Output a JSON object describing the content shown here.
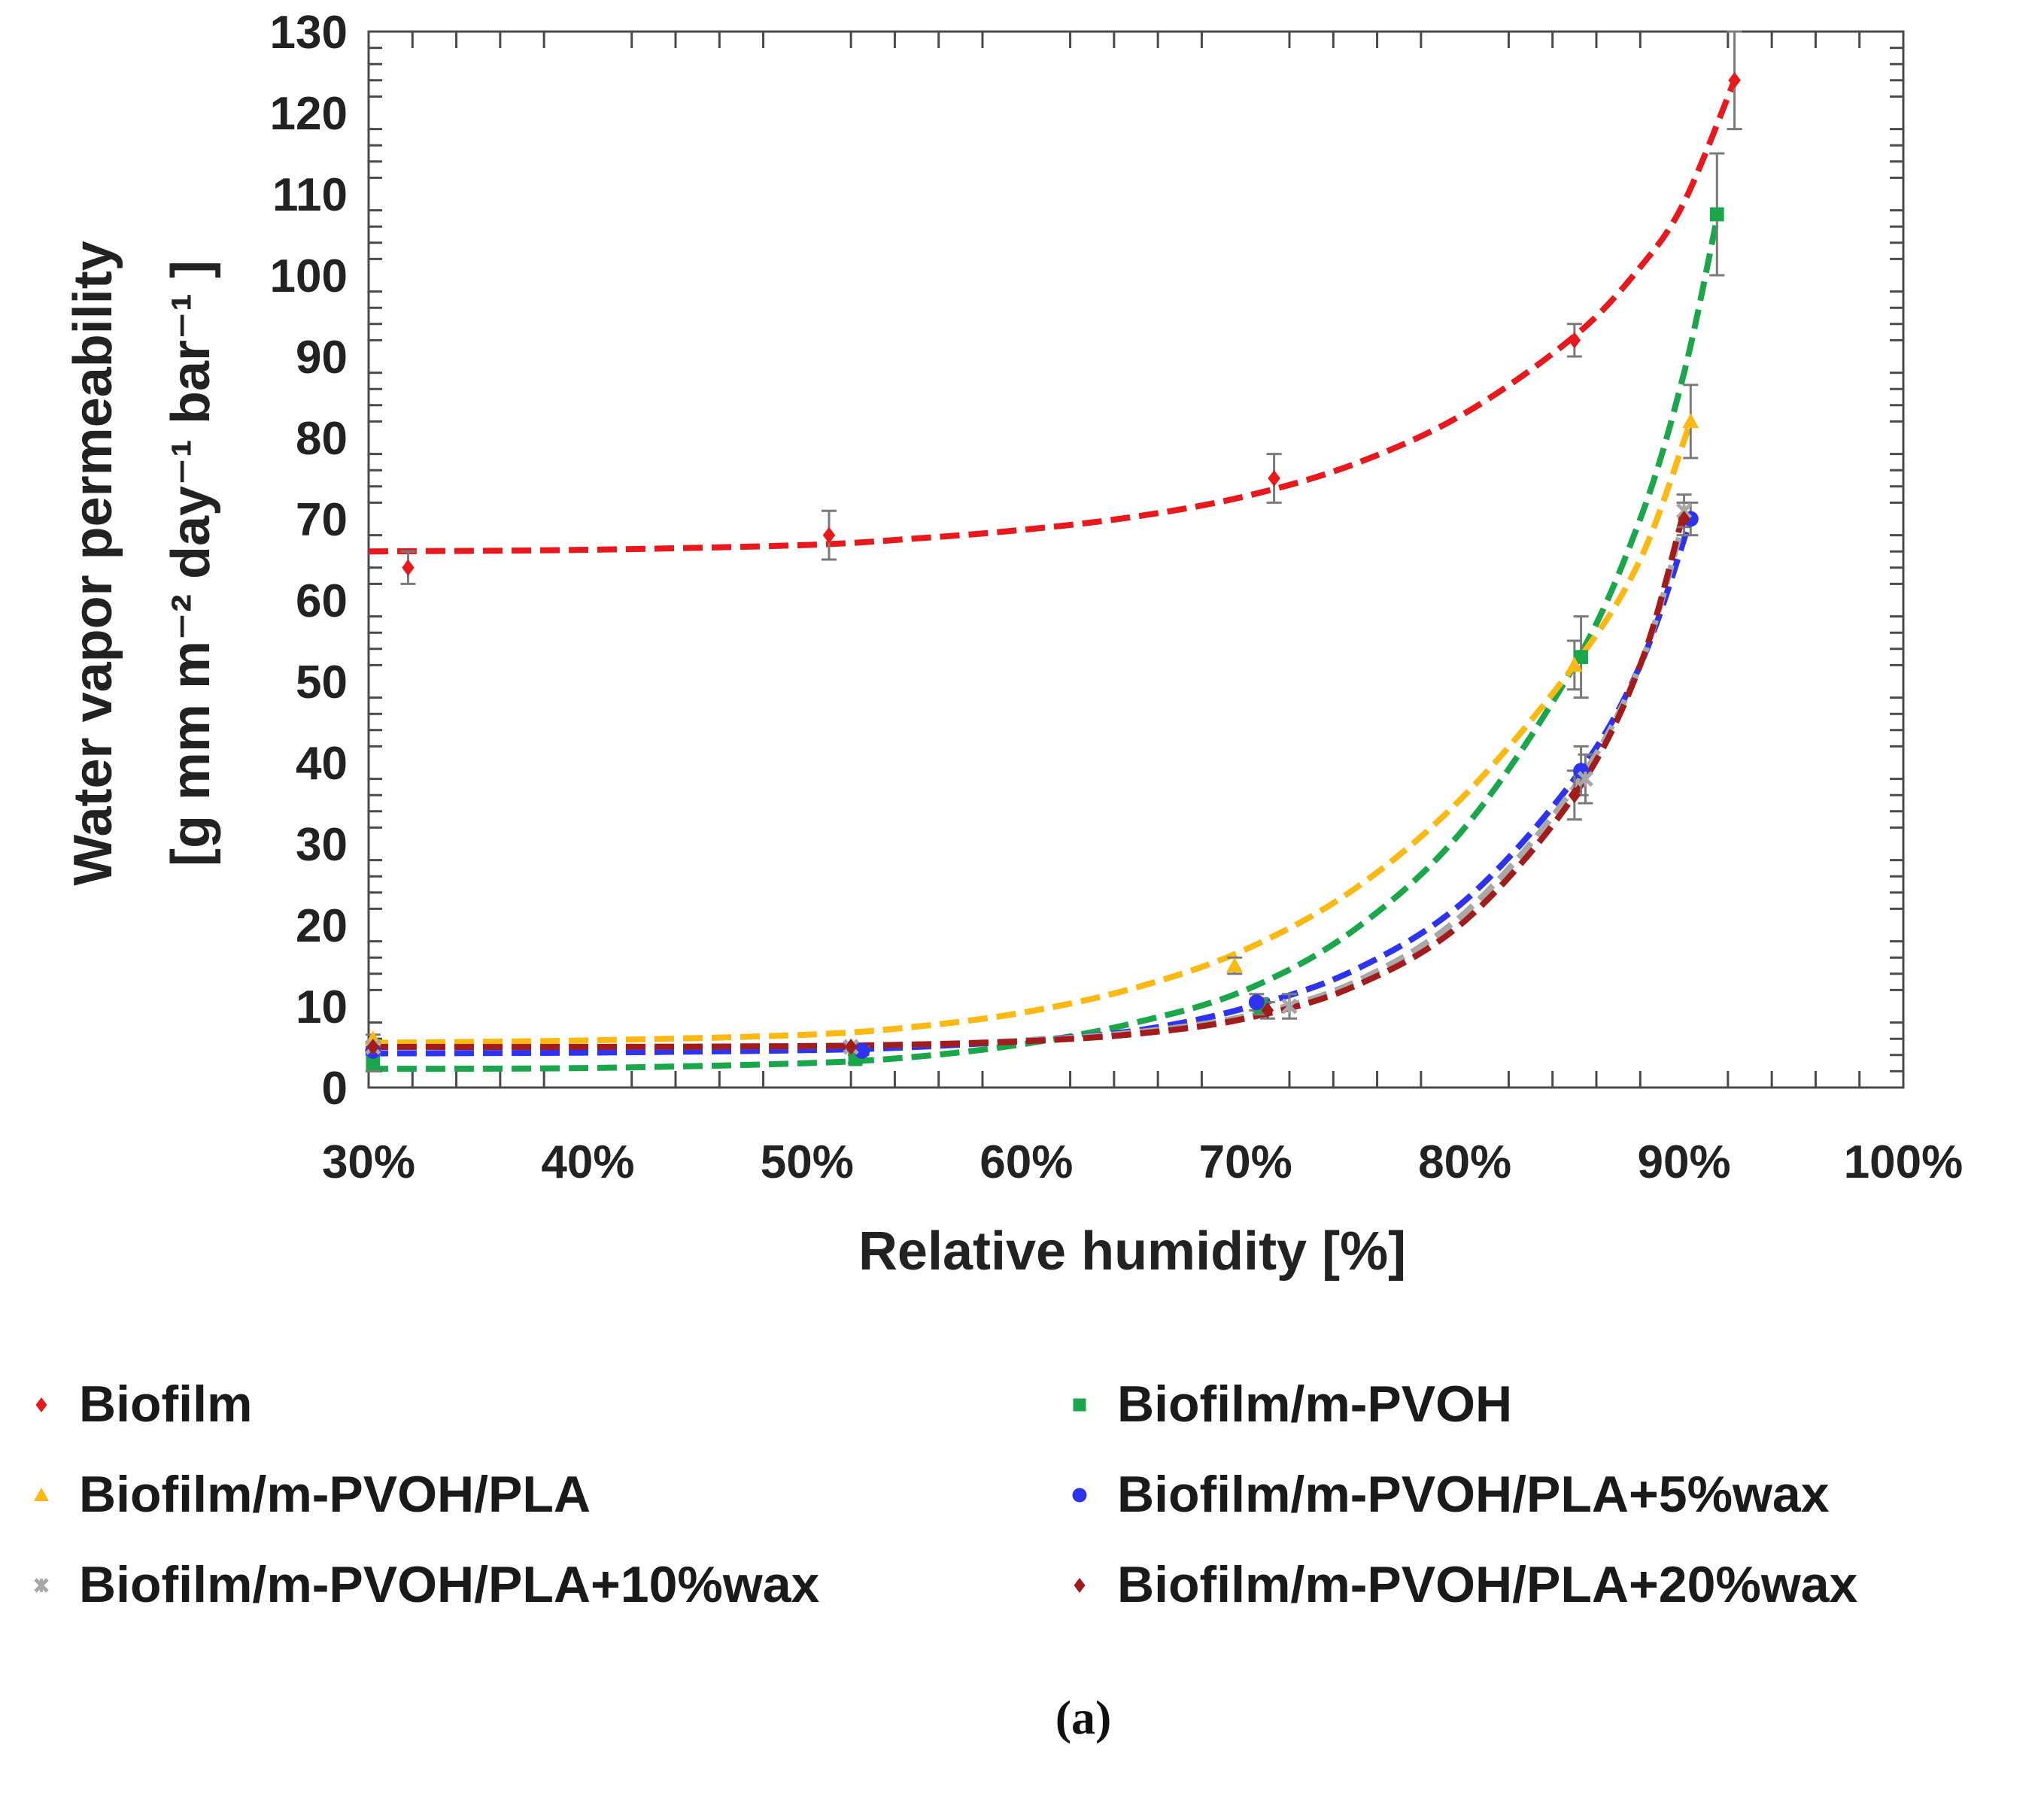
{
  "chart_data": {
    "type": "scatter",
    "xlabel": "Relative humidity [%]",
    "ylabel_line1": "Water vapor permeability",
    "ylabel_line2": "[g mm m⁻² day⁻¹ bar⁻¹ ]",
    "xlim": [
      30,
      100
    ],
    "ylim": [
      0,
      130
    ],
    "x_ticks": [
      30,
      40,
      50,
      60,
      70,
      80,
      90,
      100
    ],
    "x_tick_labels": [
      "30%",
      "40%",
      "50%",
      "60%",
      "70%",
      "80%",
      "90%",
      "100%"
    ],
    "y_ticks": [
      0,
      10,
      20,
      30,
      40,
      50,
      60,
      70,
      80,
      90,
      100,
      110,
      120,
      130
    ],
    "y_tick_labels": [
      "0",
      "10",
      "20",
      "30",
      "40",
      "50",
      "60",
      "70",
      "80",
      "90",
      "100",
      "110",
      "120",
      "130"
    ],
    "fit_curves": "dashed",
    "legend_position": "bottom",
    "series": [
      {
        "name": "Biofilm",
        "color": "#e8191c",
        "marker": "diamond",
        "x": [
          31.8,
          51.0,
          71.3,
          85.0,
          92.3
        ],
        "y": [
          64,
          68,
          75,
          92,
          124
        ],
        "err": [
          2,
          3,
          3,
          2,
          6
        ],
        "fit_x": [
          30,
          40,
          50,
          55,
          60,
          65,
          70,
          75,
          80,
          85,
          88,
          90,
          92.3
        ],
        "fit_y": [
          66,
          66.2,
          66.8,
          67.6,
          68.7,
          70.3,
          72.8,
          76.8,
          83.0,
          92.5,
          101,
          109,
          124
        ]
      },
      {
        "name": "Biofilm/m-PVOH",
        "color": "#1ca64c",
        "marker": "square",
        "x": [
          30.2,
          52.2,
          70.7,
          85.3,
          91.5
        ],
        "y": [
          3,
          3.5,
          10,
          53,
          107.5
        ],
        "err": [
          1,
          0.5,
          1,
          5,
          7.5
        ],
        "fit_x": [
          30,
          40,
          50,
          55,
          60,
          65,
          70,
          75,
          80,
          85,
          88,
          90,
          91.5
        ],
        "fit_y": [
          2.3,
          2.4,
          3.0,
          3.8,
          5.4,
          8.0,
          12.0,
          19.5,
          32.0,
          52.0,
          70.0,
          88.0,
          107
        ]
      },
      {
        "name": "Biofilm/m-PVOH/PLA",
        "color": "#fcb913",
        "marker": "triangle",
        "x": [
          30.2,
          69.5,
          85.0,
          90.3
        ],
        "y": [
          6,
          15,
          52,
          82
        ],
        "err": [
          0.5,
          1,
          3,
          4.5
        ],
        "fit_x": [
          30,
          40,
          50,
          55,
          60,
          65,
          70,
          75,
          80,
          85,
          88,
          90.3
        ],
        "fit_y": [
          5.5,
          5.8,
          6.5,
          7.5,
          9.3,
          12.3,
          17.0,
          24.5,
          36.0,
          52.0,
          65.0,
          82.0
        ]
      },
      {
        "name": "Biofilm/m-PVOH/PLA+5%wax",
        "color": "#2e33f0",
        "marker": "circle",
        "x": [
          30.2,
          52.5,
          70.5,
          85.3,
          90.3
        ],
        "y": [
          4.5,
          4.5,
          10.5,
          39,
          70
        ],
        "err": [
          0.5,
          0.5,
          1,
          3,
          2
        ],
        "fit_x": [
          30,
          40,
          50,
          55,
          60,
          65,
          70,
          75,
          80,
          85,
          88,
          90.3
        ],
        "fit_y": [
          4.2,
          4.3,
          4.6,
          5.0,
          5.8,
          7.0,
          9.8,
          14.5,
          23.0,
          38.0,
          52.0,
          70.0
        ]
      },
      {
        "name": "Biofilm/m-PVOH/PLA+10%wax",
        "color": "#a8a8a8",
        "marker": "star",
        "x": [
          30.2,
          52.0,
          72.0,
          85.5,
          90.0
        ],
        "y": [
          5,
          5,
          10,
          38,
          71
        ],
        "err": [
          0.5,
          0.5,
          1.5,
          3,
          2
        ],
        "fit_x": [
          30,
          40,
          50,
          55,
          60,
          65,
          70,
          75,
          80,
          85,
          88,
          90
        ],
        "fit_y": [
          5.0,
          5.0,
          5.1,
          5.3,
          5.8,
          6.8,
          8.8,
          13.0,
          21.5,
          37.0,
          52.0,
          70.0
        ]
      },
      {
        "name": "Biofilm/m-PVOH/PLA+20%wax",
        "color": "#a31c1c",
        "marker": "diamond",
        "x": [
          30.2,
          52.0,
          71.0,
          85.0,
          90.0
        ],
        "y": [
          5,
          5,
          9.5,
          36,
          70
        ],
        "err": [
          0.5,
          0.5,
          1,
          3,
          2
        ],
        "fit_x": [
          30,
          40,
          50,
          55,
          60,
          65,
          70,
          75,
          80,
          85,
          88,
          90
        ],
        "fit_y": [
          5.0,
          5.0,
          5.1,
          5.3,
          5.7,
          6.6,
          8.5,
          12.5,
          20.5,
          36.0,
          52.0,
          71.0
        ]
      }
    ]
  },
  "caption": "(a)"
}
